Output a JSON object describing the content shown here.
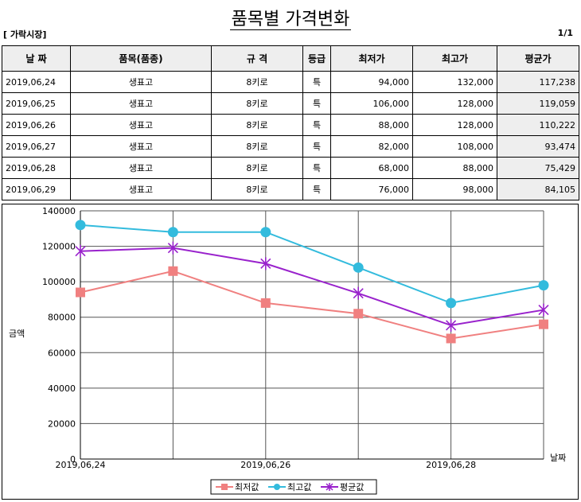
{
  "header": {
    "title": "품목별 가격변화",
    "market": "[ 가락시장]",
    "page": "1/1"
  },
  "table": {
    "columns": [
      "날 짜",
      "품목(품종)",
      "규 격",
      "등급",
      "최저가",
      "최고가",
      "평균가"
    ],
    "rows": [
      [
        "2019,06,24",
        "생표고",
        "8키로",
        "특",
        "94,000",
        "132,000",
        "117,238"
      ],
      [
        "2019,06,25",
        "생표고",
        "8키로",
        "특",
        "106,000",
        "128,000",
        "119,059"
      ],
      [
        "2019,06,26",
        "생표고",
        "8키로",
        "특",
        "88,000",
        "128,000",
        "110,222"
      ],
      [
        "2019,06,27",
        "생표고",
        "8키로",
        "특",
        "82,000",
        "108,000",
        "93,474"
      ],
      [
        "2019,06,28",
        "생표고",
        "8키로",
        "특",
        "68,000",
        "88,000",
        "75,429"
      ],
      [
        "2019,06,29",
        "생표고",
        "8키로",
        "특",
        "76,000",
        "98,000",
        "84,105"
      ]
    ]
  },
  "chart_data": {
    "type": "line",
    "categories": [
      "2019,06,24",
      "2019,06,25",
      "2019,06,26",
      "2019,06,27",
      "2019,06,28",
      "2019,06,29"
    ],
    "x_tick_labels": [
      "2019,06,24",
      "2019,06,26",
      "2019,06,28"
    ],
    "series": [
      {
        "name": "최저값",
        "values": [
          94000,
          106000,
          88000,
          82000,
          68000,
          76000
        ],
        "color": "#f08080",
        "marker": "square"
      },
      {
        "name": "최고값",
        "values": [
          132000,
          128000,
          128000,
          108000,
          88000,
          98000
        ],
        "color": "#33bbdd",
        "marker": "circle"
      },
      {
        "name": "평균값",
        "values": [
          117238,
          119059,
          110222,
          93474,
          75429,
          84105
        ],
        "color": "#9922cc",
        "marker": "star"
      }
    ],
    "ylim": [
      0,
      140000
    ],
    "yticks": [
      0,
      20000,
      40000,
      60000,
      80000,
      100000,
      120000,
      140000
    ],
    "xlabel": "날짜",
    "ylabel": "금액",
    "legend_position": "bottom",
    "grid": true
  }
}
